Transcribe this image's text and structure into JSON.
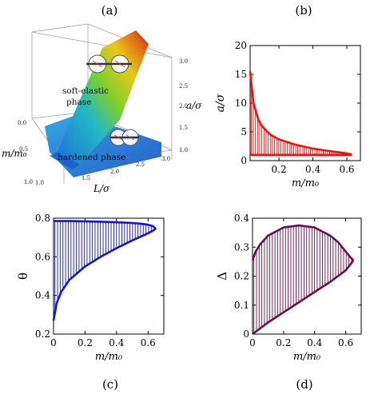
{
  "panels": {
    "a": "(a)",
    "b": "(b)",
    "c": "(c)",
    "d": "(d)"
  },
  "panel_a": {
    "phase_soft": [
      "soft-elastic",
      "phase"
    ],
    "phase_hard": "hardened phase",
    "axis_m": "m/m₀",
    "axis_L": "L/σ",
    "axis_a": "a/σ",
    "ticks_m": [
      "0.0",
      "0.5",
      "1.0"
    ],
    "ticks_L": [
      "1.0",
      "1.5",
      "2.0",
      "2.5",
      "3.0"
    ],
    "ticks_a": [
      "1.0",
      "1.5",
      "2.0",
      "2.5",
      "3.0"
    ],
    "colors": {
      "high": "#c41212",
      "mid": "#7fcf2a",
      "low": "#1f6fd6"
    }
  },
  "chart_data": [
    {
      "id": "b",
      "type": "line",
      "xlabel": "m/m₀",
      "ylabel": "a/σ",
      "xlim": [
        0.03,
        0.68
      ],
      "ylim": [
        0,
        20
      ],
      "xticks": [
        "0.2",
        "0.4",
        "0.6"
      ],
      "yticks": [
        "0",
        "5",
        "10",
        "15",
        "20"
      ],
      "color": "#ee1111",
      "upper": {
        "x": [
          0.03,
          0.05,
          0.08,
          0.1,
          0.15,
          0.2,
          0.3,
          0.4,
          0.5,
          0.58,
          0.63
        ],
        "y": [
          15.5,
          10.0,
          7.0,
          6.0,
          4.5,
          3.7,
          2.75,
          2.1,
          1.65,
          1.35,
          1.1
        ]
      },
      "lower": {
        "x": [
          0.03,
          0.63
        ],
        "y": [
          1.0,
          1.0
        ]
      },
      "grid": false
    },
    {
      "id": "c",
      "type": "line",
      "xlabel": "m/m₀",
      "ylabel": "θ",
      "xlim": [
        0,
        0.7
      ],
      "ylim": [
        0.2,
        0.8
      ],
      "xticks": [
        "0",
        "0.2",
        "0.4",
        "0.6"
      ],
      "yticks": [
        "0.2",
        "0.4",
        "0.6",
        "0.8"
      ],
      "color": "#1414d8",
      "upper": {
        "x": [
          0,
          0.1,
          0.2,
          0.3,
          0.4,
          0.5,
          0.55,
          0.6,
          0.63,
          0.65
        ],
        "y": [
          0.785,
          0.785,
          0.784,
          0.782,
          0.779,
          0.775,
          0.772,
          0.766,
          0.759,
          0.745
        ]
      },
      "lower": {
        "x": [
          0,
          0.02,
          0.05,
          0.1,
          0.2,
          0.3,
          0.4,
          0.5,
          0.55,
          0.6,
          0.63,
          0.65
        ],
        "y": [
          0.27,
          0.36,
          0.42,
          0.48,
          0.55,
          0.6,
          0.645,
          0.685,
          0.703,
          0.722,
          0.735,
          0.745
        ]
      },
      "grid": false
    },
    {
      "id": "d",
      "type": "line",
      "xlabel": "m/m₀",
      "ylabel": "Δ",
      "xlim": [
        0,
        0.7
      ],
      "ylim": [
        0,
        0.4
      ],
      "xticks": [
        "0",
        "0.2",
        "0.4",
        "0.6"
      ],
      "yticks": [
        "0",
        "0.1",
        "0.2",
        "0.3",
        "0.4"
      ],
      "color": "#6b0f4f",
      "upper": {
        "x": [
          0,
          0.02,
          0.05,
          0.1,
          0.2,
          0.3,
          0.4,
          0.5,
          0.55,
          0.6,
          0.63,
          0.65
        ],
        "y": [
          0.255,
          0.285,
          0.31,
          0.34,
          0.368,
          0.375,
          0.368,
          0.34,
          0.318,
          0.285,
          0.265,
          0.255
        ]
      },
      "lower": {
        "x": [
          0,
          0.05,
          0.1,
          0.2,
          0.3,
          0.4,
          0.5,
          0.55,
          0.6,
          0.63,
          0.65
        ],
        "y": [
          0,
          0.02,
          0.04,
          0.075,
          0.11,
          0.145,
          0.18,
          0.2,
          0.22,
          0.24,
          0.255
        ]
      },
      "grid": false
    }
  ]
}
